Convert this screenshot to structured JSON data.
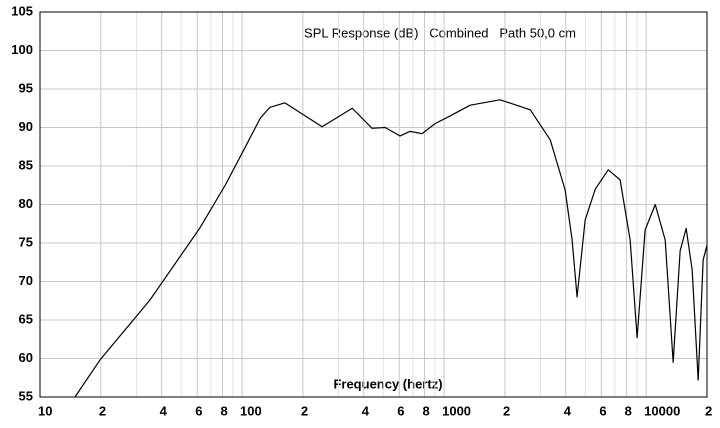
{
  "chart_data": {
    "type": "line",
    "title": "SPL Response (dB)   Combined   Path 50,0 cm",
    "xlabel": "Frequency (hertz)",
    "xlog": true,
    "grid": true,
    "xlim": [
      10,
      20000
    ],
    "ylim": [
      55,
      105
    ],
    "yticks": [
      55,
      60,
      65,
      70,
      75,
      80,
      85,
      90,
      95,
      100,
      105
    ],
    "xticks": [
      10,
      {
        "value": 20,
        "label": "2"
      },
      {
        "value": 40,
        "label": "4"
      },
      {
        "value": 60,
        "label": "6"
      },
      {
        "value": 80,
        "label": "8"
      },
      100,
      {
        "value": 200,
        "label": "2"
      },
      {
        "value": 400,
        "label": "4"
      },
      {
        "value": 600,
        "label": "6"
      },
      {
        "value": 800,
        "label": "8"
      },
      1000,
      {
        "value": 2000,
        "label": "2"
      },
      {
        "value": 4000,
        "label": "4"
      },
      {
        "value": 6000,
        "label": "6"
      },
      {
        "value": 8000,
        "label": "8"
      },
      10000,
      {
        "value": 20000,
        "label": "2"
      }
    ],
    "xminorticks": [
      30,
      50,
      70,
      90,
      300,
      500,
      700,
      900,
      3000,
      5000,
      7000,
      9000
    ],
    "series": [
      {
        "color": "#000000",
        "x": [
          14.9,
          19.8,
          35,
          62,
          82.5,
          103,
          123,
          137,
          163,
          249,
          351,
          440,
          511,
          605,
          679,
          778,
          902,
          1071,
          1346,
          1890,
          2670,
          3350,
          3970,
          4300,
          4550,
          4990,
          5600,
          6490,
          7430,
          8330,
          9020,
          9880,
          11090,
          12420,
          13600,
          14730,
          15770,
          16890,
          18090,
          19140,
          20000
        ],
        "values": [
          55,
          59.8,
          67.6,
          77,
          82.5,
          87.3,
          91.2,
          92.6,
          93.2,
          90.1,
          92.5,
          89.9,
          90,
          88.9,
          89.5,
          89.2,
          90.5,
          91.5,
          92.9,
          93.6,
          92.3,
          88.4,
          81.9,
          75.4,
          68,
          78,
          82,
          84.5,
          83.2,
          75.4,
          62.7,
          76.7,
          80,
          75.4,
          59.5,
          74,
          76.9,
          71.5,
          57.2,
          72.8,
          74.7
        ]
      }
    ]
  }
}
